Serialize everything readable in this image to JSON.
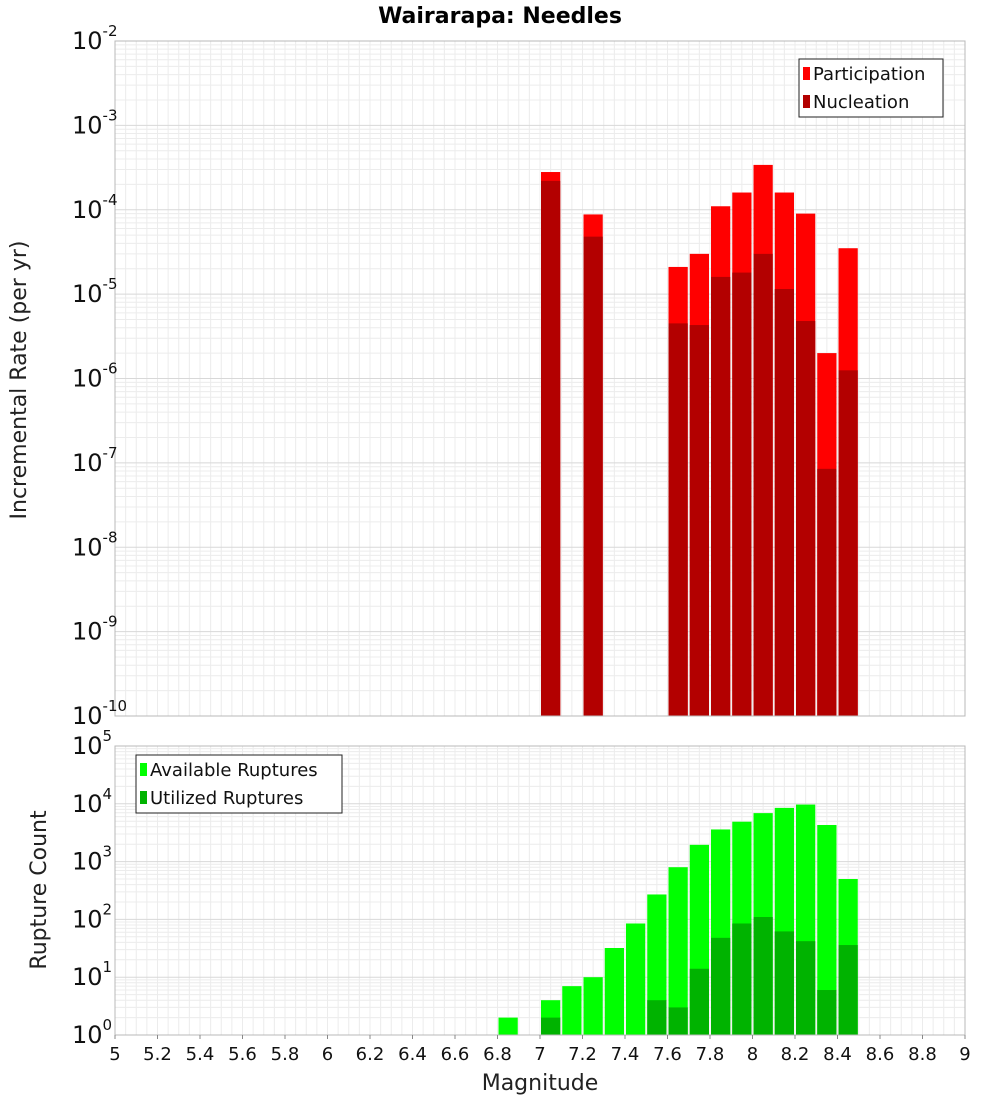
{
  "chart_data": [
    {
      "type": "bar",
      "title": "Wairarapa: Needles",
      "ylabel": "Incremental Rate (per yr)",
      "xlabel": "",
      "yscale": "log",
      "ylim_exp": [
        -10,
        -2
      ],
      "xlim": [
        5,
        9
      ],
      "grid": true,
      "legend_position": "top-right",
      "bin_width": 0.1,
      "series": [
        {
          "name": "Participation",
          "color": "#ff0000",
          "x": [
            7.05,
            7.25,
            7.65,
            7.75,
            7.85,
            7.95,
            8.05,
            8.15,
            8.25,
            8.35,
            8.45
          ],
          "values": [
            0.00028,
            8.8e-05,
            2.1e-05,
            3e-05,
            0.00011,
            0.00016,
            0.00034,
            0.00016,
            9e-05,
            2e-06,
            3.5e-05
          ]
        },
        {
          "name": "Nucleation",
          "color": "#b30000",
          "x": [
            7.05,
            7.25,
            7.65,
            7.75,
            7.85,
            7.95,
            8.05,
            8.15,
            8.25,
            8.35,
            8.45
          ],
          "values": [
            0.00022,
            4.8e-05,
            4.5e-06,
            4.3e-06,
            1.6e-05,
            1.8e-05,
            3e-05,
            1.15e-05,
            4.8e-06,
            8.5e-08,
            1.25e-06
          ]
        }
      ]
    },
    {
      "type": "bar",
      "title": "",
      "ylabel": "Rupture Count",
      "xlabel": "Magnitude",
      "yscale": "log",
      "ylim_exp": [
        0,
        5
      ],
      "xlim": [
        5,
        9
      ],
      "grid": true,
      "legend_position": "top-left",
      "bin_width": 0.1,
      "x_ticks": [
        "5",
        "5.2",
        "5.4",
        "5.6",
        "5.8",
        "6",
        "6.2",
        "6.4",
        "6.6",
        "6.8",
        "7",
        "7.2",
        "7.4",
        "7.6",
        "7.8",
        "8",
        "8.2",
        "8.4",
        "8.6",
        "8.8",
        "9"
      ],
      "series": [
        {
          "name": "Available Ruptures",
          "color": "#00ff00",
          "x": [
            6.85,
            6.95,
            7.05,
            7.15,
            7.25,
            7.35,
            7.45,
            7.55,
            7.65,
            7.75,
            7.85,
            7.95,
            8.05,
            8.15,
            8.25,
            8.35,
            8.45,
            8.55
          ],
          "values": [
            2,
            1,
            4,
            7,
            10,
            32,
            85,
            270,
            800,
            1950,
            3600,
            4900,
            6900,
            8500,
            9700,
            4300,
            500,
            1
          ]
        },
        {
          "name": "Utilized Ruptures",
          "color": "#00b300",
          "x": [
            6.85,
            6.95,
            7.05,
            7.15,
            7.25,
            7.35,
            7.45,
            7.55,
            7.65,
            7.75,
            7.85,
            7.95,
            8.05,
            8.15,
            8.25,
            8.35,
            8.45,
            8.55
          ],
          "values": [
            0,
            1,
            2,
            0,
            1,
            0,
            0,
            4,
            3,
            14,
            48,
            85,
            110,
            62,
            42,
            6,
            36,
            1
          ]
        }
      ]
    }
  ]
}
